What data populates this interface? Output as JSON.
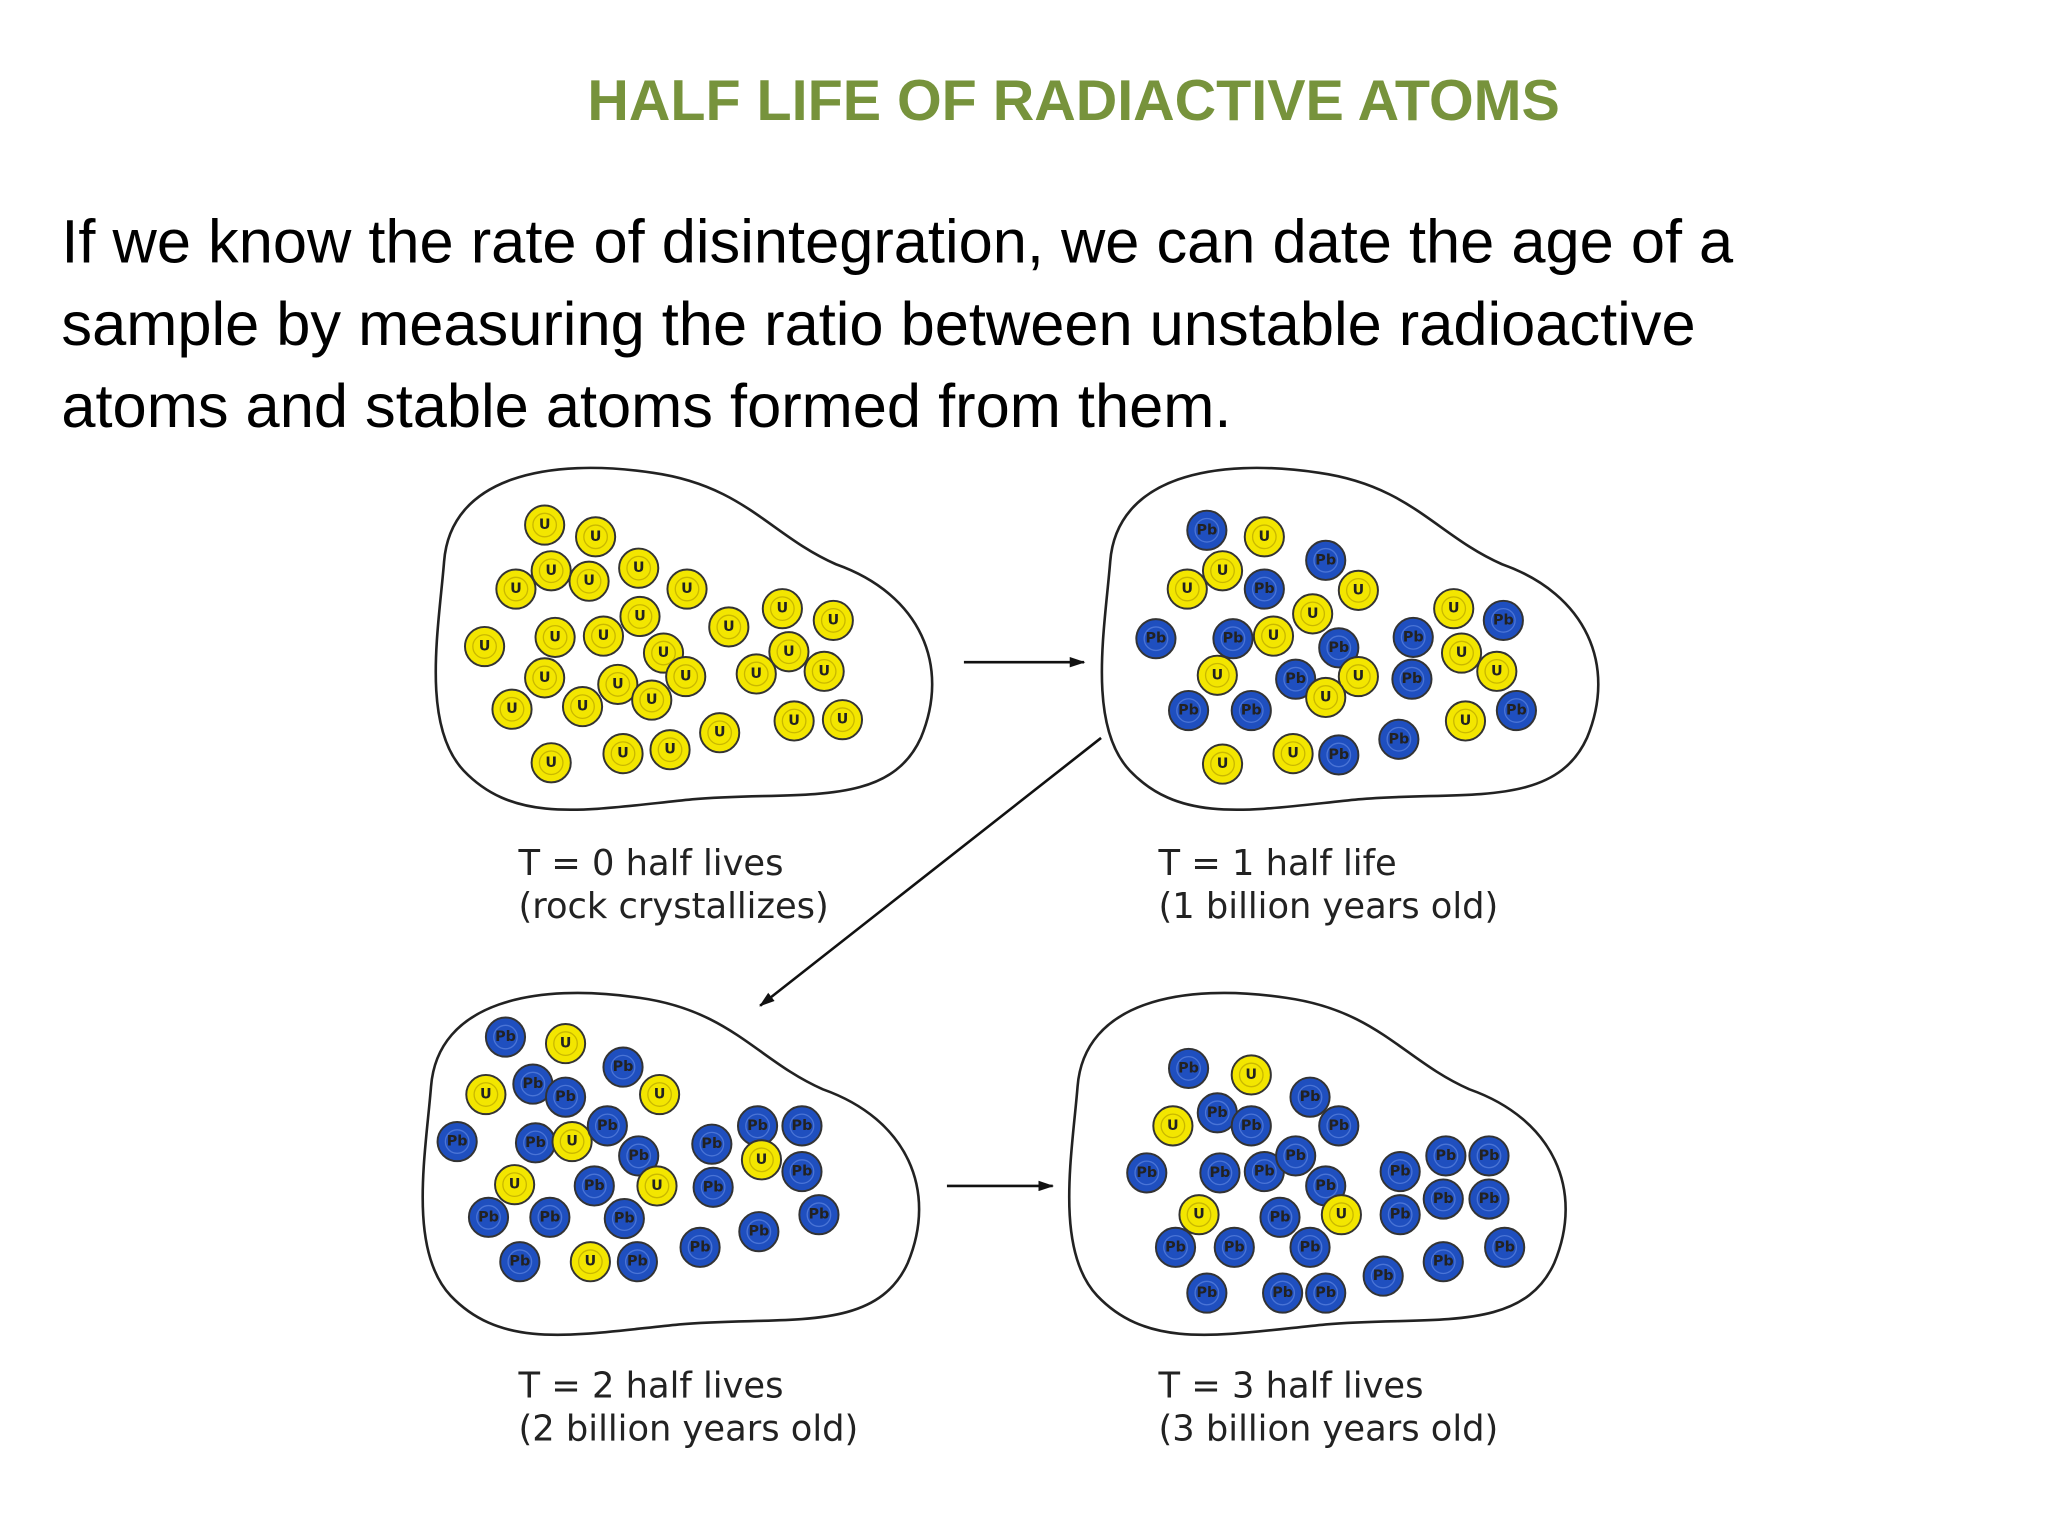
{
  "title": "HALF LIFE OF RADIACTIVE  ATOMS",
  "paragraph": [
    "If we know the rate of disintegration, we can date the age of a",
    "sample by measuring the ratio between unstable radioactive",
    "atoms and stable atoms formed from them."
  ],
  "panels": [
    {
      "caption": [
        "T = 0 half lives",
        "(rock crystallizes)"
      ],
      "atoms": [
        "U",
        "U",
        "U",
        "U",
        "U",
        "U",
        "U",
        "U",
        "U",
        "U",
        "U",
        "U",
        "U",
        "U",
        "U",
        "U",
        "U",
        "U",
        "U",
        "U",
        "U",
        "U",
        "U",
        "U",
        "U",
        "U",
        "U",
        "U",
        "U",
        "U"
      ]
    },
    {
      "caption": [
        "T = 1 half life",
        "(1 billion years old)"
      ],
      "atoms": [
        "Pb",
        "U",
        "Pb",
        "U",
        "U",
        "Pb",
        "U",
        "U",
        "Pb",
        "Pb",
        "U",
        "Pb",
        "Pb",
        "U",
        "Pb",
        "U",
        "U",
        "Pb",
        "U",
        "Pb",
        "U",
        "U",
        "Pb",
        "Pb",
        "U",
        "Pb",
        "U",
        "U",
        "Pb",
        "Pb"
      ]
    },
    {
      "caption": [
        "T = 2 half lives",
        "(2 billion years old)"
      ],
      "atoms": [
        "Pb",
        "U",
        "Pb",
        "U",
        "Pb",
        "Pb",
        "U",
        "Pb",
        "Pb",
        "U",
        "Pb",
        "Pb",
        "Pb",
        "Pb",
        "Pb",
        "U",
        "Pb",
        "U",
        "Pb",
        "U",
        "Pb",
        "Pb",
        "Pb",
        "Pb",
        "Pb",
        "Pb",
        "Pb",
        "U",
        "Pb",
        "Pb"
      ]
    },
    {
      "caption": [
        "T = 3 half lives",
        "(3 billion years old)"
      ],
      "atoms": [
        "Pb",
        "U",
        "Pb",
        "U",
        "Pb",
        "Pb",
        "Pb",
        "Pb",
        "Pb",
        "Pb",
        "Pb",
        "Pb",
        "Pb",
        "Pb",
        "Pb",
        "Pb",
        "Pb",
        "Pb",
        "U",
        "Pb",
        "U",
        "Pb",
        "Pb",
        "Pb",
        "Pb",
        "Pb",
        "Pb",
        "Pb",
        "Pb",
        "Pb"
      ]
    }
  ]
}
